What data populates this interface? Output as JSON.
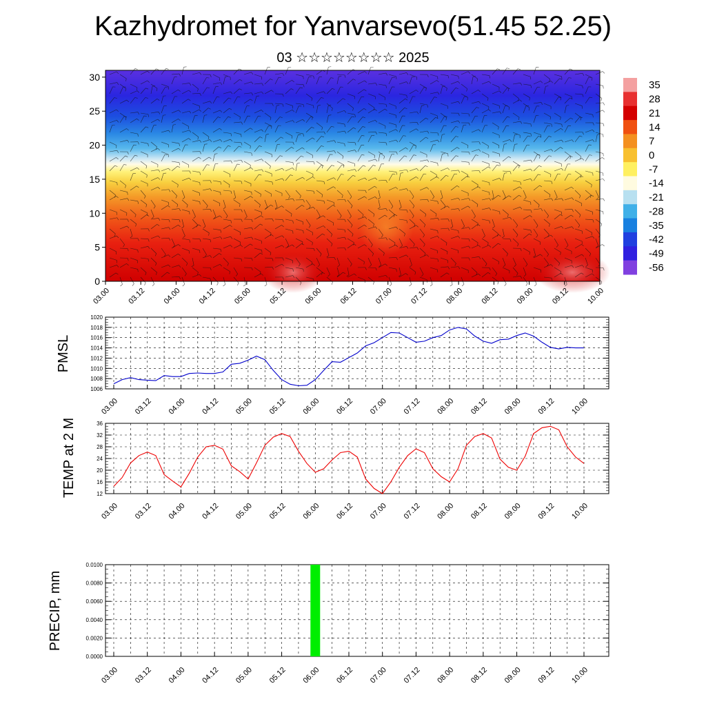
{
  "header": {
    "title": "Kazhydromet for Yanvarsevo(51.45 52.25)",
    "subtitle": "03 ☆☆☆☆☆☆☆☆ 2025"
  },
  "time_ticks": [
    "03.00",
    "03.12",
    "04.00",
    "04.12",
    "05.00",
    "05.12",
    "06.00",
    "06.12",
    "07.00",
    "07.12",
    "08.00",
    "08.12",
    "09.00",
    "09.12",
    "10.00"
  ],
  "chart_data": [
    {
      "type": "heatmap",
      "name": "upper-air-cross-section",
      "xlabel": "",
      "ylabel": "",
      "ylim": [
        0,
        31
      ],
      "yticks": [
        "0",
        "5",
        "10",
        "15",
        "20",
        "25",
        "30"
      ],
      "x_ticks": [
        "03.00",
        "03.12",
        "04.00",
        "04.12",
        "05.00",
        "05.12",
        "06.00",
        "06.12",
        "07.00",
        "07.12",
        "08.00",
        "08.12",
        "09.00",
        "09.12",
        "10.00"
      ],
      "colorbar": {
        "labels": [
          "35",
          "28",
          "21",
          "14",
          "7",
          "0",
          "-7",
          "-14",
          "-21",
          "-28",
          "-35",
          "-42",
          "-49",
          "-56"
        ],
        "colors": [
          "#f4a0a0",
          "#e83030",
          "#d40000",
          "#f05010",
          "#f49020",
          "#f8c030",
          "#fff060",
          "#fffbe0",
          "#b8e0f0",
          "#40b0e8",
          "#1880e0",
          "#2040e0",
          "#3020e0",
          "#8040e0"
        ]
      },
      "notes": "Temperature shading (red warm near surface, yellow mid-levels, blue/purple aloft) with overlaid wind barbs"
    },
    {
      "type": "line",
      "name": "pmsl",
      "ylabel": "PMSL",
      "ylim": [
        1006,
        1020
      ],
      "yticks": [
        1006,
        1008,
        1010,
        1012,
        1014,
        1016,
        1018,
        1020
      ],
      "color": "#0000cc",
      "x_ticks": [
        "03.00",
        "03.12",
        "04.00",
        "04.12",
        "05.00",
        "05.12",
        "06.00",
        "06.12",
        "07.00",
        "07.12",
        "08.00",
        "08.12",
        "09.00",
        "09.12",
        "10.00"
      ],
      "values": [
        1007.0,
        1007.8,
        1008.2,
        1007.8,
        1007.7,
        1007.6,
        1008.6,
        1008.4,
        1008.4,
        1009.0,
        1009.1,
        1009.0,
        1009.0,
        1009.3,
        1010.8,
        1011.0,
        1011.6,
        1012.4,
        1011.7,
        1009.6,
        1007.8,
        1006.9,
        1006.6,
        1006.7,
        1007.8,
        1009.6,
        1011.3,
        1011.2,
        1012.1,
        1013.0,
        1014.4,
        1015.0,
        1016.0,
        1017.0,
        1016.9,
        1016.0,
        1015.1,
        1015.3,
        1016.0,
        1016.4,
        1017.5,
        1018.0,
        1017.7,
        1016.3,
        1015.3,
        1014.9,
        1015.6,
        1015.7,
        1016.4,
        1016.9,
        1016.3,
        1015.1,
        1014.1,
        1013.8,
        1014.1,
        1014.0,
        1014.0
      ]
    },
    {
      "type": "line",
      "name": "temp-2m",
      "ylabel": "TEMP at 2 M",
      "ylim": [
        12,
        36
      ],
      "yticks": [
        12,
        16,
        20,
        24,
        28,
        32,
        36
      ],
      "color": "#ee0000",
      "x_ticks": [
        "03.00",
        "03.12",
        "04.00",
        "04.12",
        "05.00",
        "05.12",
        "06.00",
        "06.12",
        "07.00",
        "07.12",
        "08.00",
        "08.12",
        "09.00",
        "09.12",
        "10.00"
      ],
      "values": [
        14.5,
        17.5,
        22.5,
        25.0,
        26.2,
        25.0,
        18.5,
        16.3,
        14.3,
        19.0,
        24.5,
        28.0,
        28.5,
        27.2,
        21.5,
        19.5,
        17.0,
        22.5,
        28.5,
        31.3,
        32.5,
        31.5,
        26.5,
        22.3,
        19.3,
        20.5,
        23.5,
        26.0,
        26.5,
        24.5,
        17.0,
        13.8,
        12.0,
        16.0,
        21.0,
        25.0,
        27.3,
        26.0,
        20.5,
        17.8,
        16.0,
        20.5,
        28.5,
        31.5,
        32.5,
        31.0,
        23.8,
        21.0,
        20.0,
        24.8,
        32.5,
        34.5,
        35.0,
        33.8,
        28.0,
        24.5,
        22.3
      ]
    },
    {
      "type": "bar",
      "name": "precip",
      "ylabel": "PRECIP, mm",
      "ylim": [
        0,
        0.01
      ],
      "yticks": [
        "0.0000",
        "0.0020",
        "0.0040",
        "0.0060",
        "0.0080",
        "0.0100"
      ],
      "color": "#00ee00",
      "x_ticks": [
        "03.00",
        "03.12",
        "04.00",
        "04.12",
        "05.00",
        "05.12",
        "06.00",
        "06.12",
        "07.00",
        "07.12",
        "08.00",
        "08.12",
        "09.00",
        "09.12",
        "10.00"
      ],
      "bars": [
        {
          "x": "06.00",
          "value": 0.01
        }
      ]
    }
  ]
}
